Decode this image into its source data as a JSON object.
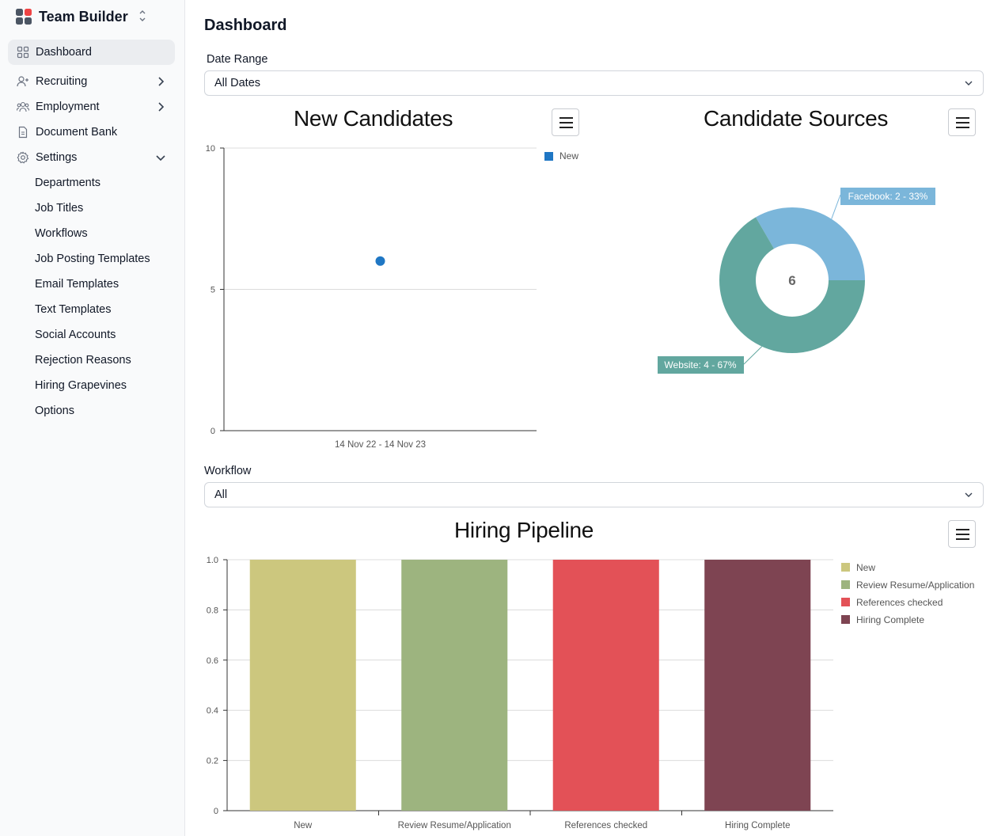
{
  "app": {
    "title": "Team Builder"
  },
  "sidebar": {
    "items": [
      {
        "label": "Dashboard"
      },
      {
        "label": "Recruiting"
      },
      {
        "label": "Employment"
      },
      {
        "label": "Document Bank"
      },
      {
        "label": "Settings"
      }
    ],
    "settings_items": [
      "Departments",
      "Job Titles",
      "Workflows",
      "Job Posting Templates",
      "Email Templates",
      "Text Templates",
      "Social Accounts",
      "Rejection Reasons",
      "Hiring Grapevines",
      "Options"
    ]
  },
  "main": {
    "title": "Dashboard",
    "date_range": {
      "label": "Date Range",
      "value": "All Dates"
    },
    "workflow": {
      "label": "Workflow",
      "value": "All"
    }
  },
  "chart_data": [
    {
      "type": "scatter",
      "title": "New Candidates",
      "series": [
        {
          "name": "New",
          "color": "#1f77c4",
          "x": [
            "14 Nov 22 - 14 Nov 23"
          ],
          "values": [
            6
          ]
        }
      ],
      "categories": [
        "14 Nov 22 - 14 Nov 23"
      ],
      "y_ticks": [
        "10",
        "5",
        "0"
      ],
      "ylim": [
        0,
        10
      ]
    },
    {
      "type": "pie",
      "title": "Candidate Sources",
      "center_label": "6",
      "slices": [
        {
          "name": "Facebook",
          "value": 2,
          "percent": 33,
          "label": "Facebook: 2 - 33%",
          "color": "#7bb6da"
        },
        {
          "name": "Website",
          "value": 4,
          "percent": 67,
          "label": "Website: 4 - 67%",
          "color": "#62a79f"
        }
      ]
    },
    {
      "type": "bar",
      "title": "Hiring Pipeline",
      "categories": [
        "New",
        "Review Resume/Application",
        "References checked",
        "Hiring Complete"
      ],
      "values": [
        1,
        1,
        1,
        1
      ],
      "colors": [
        "#ccc77e",
        "#9db47f",
        "#e35157",
        "#7e4452"
      ],
      "y_ticks": [
        "1.0",
        "0.8",
        "0.6",
        "0.4",
        "0.2",
        "0"
      ],
      "ylim": [
        0,
        1
      ],
      "legend": [
        "New",
        "Review Resume/Application",
        "References checked",
        "Hiring Complete"
      ]
    }
  ]
}
